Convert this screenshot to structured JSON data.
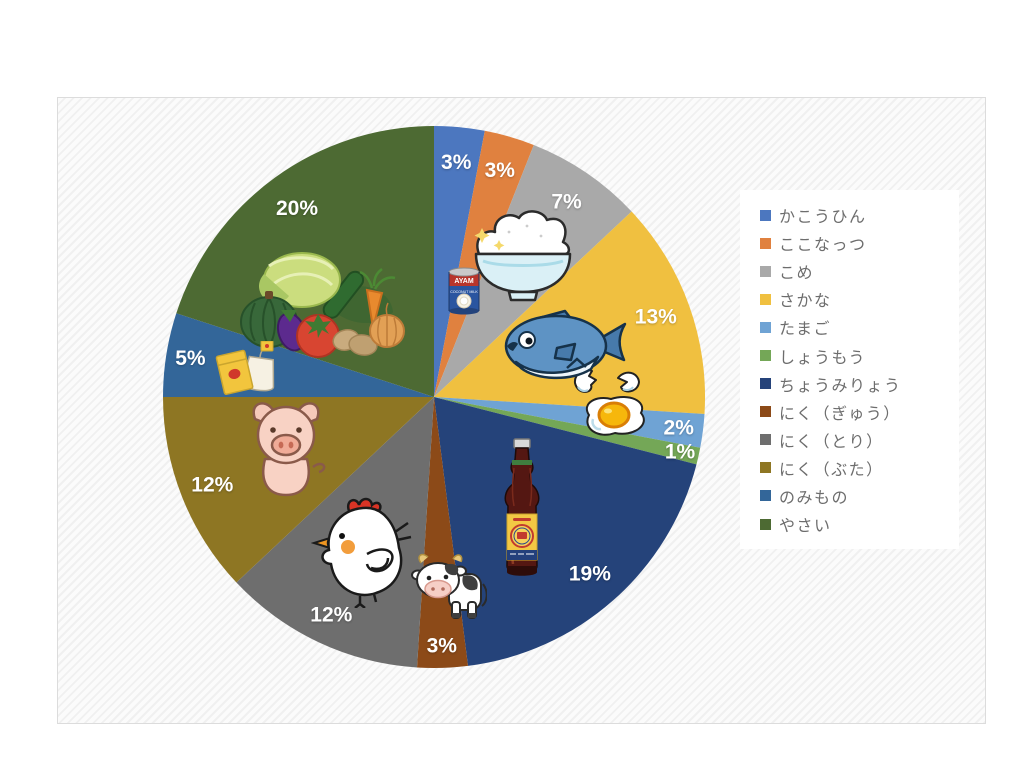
{
  "chart_data": {
    "type": "pie",
    "title": "",
    "unit": "percent",
    "direction": "clockwise",
    "start_angle_deg": 0,
    "legend_position": "right",
    "total": 100,
    "slices": [
      {
        "id": "kakouhin",
        "label": "かこうひん",
        "value": 3,
        "display": "3%",
        "color": "#4C77BF",
        "label_r": 0.87
      },
      {
        "id": "coconut",
        "label": "ここなっつ",
        "value": 3,
        "display": "3%",
        "color": "#E0813F",
        "label_r": 0.87
      },
      {
        "id": "kome",
        "label": "こめ",
        "value": 7,
        "display": "7%",
        "color": "#A9A9A9",
        "label_r": 0.87
      },
      {
        "id": "sakana",
        "label": "さかな",
        "value": 13,
        "display": "13%",
        "color": "#F0C040",
        "label_r": 0.87
      },
      {
        "id": "tamago",
        "label": "たまご",
        "value": 2,
        "display": "2%",
        "color": "#6FA3D4",
        "label_r": 0.91
      },
      {
        "id": "shoumou",
        "label": "しょうもう",
        "value": 1,
        "display": "1%",
        "color": "#74A757",
        "label_r": 0.93
      },
      {
        "id": "choumiryou",
        "label": "ちょうみりょう",
        "value": 19,
        "display": "19%",
        "color": "#25437A",
        "label_r": 0.87
      },
      {
        "id": "niku-gyuu",
        "label": "にく（ぎゅう）",
        "value": 3,
        "display": "3%",
        "color": "#8C4A18",
        "label_r": 0.92
      },
      {
        "id": "niku-tori",
        "label": "にく（とり）",
        "value": 12,
        "display": "12%",
        "color": "#6E6E6E",
        "label_r": 0.89
      },
      {
        "id": "niku-buta",
        "label": "にく（ぶた）",
        "value": 12,
        "display": "12%",
        "color": "#8E7623",
        "label_r": 0.88
      },
      {
        "id": "nomimono",
        "label": "のみもの",
        "value": 5,
        "display": "5%",
        "color": "#336699",
        "label_r": 0.91
      },
      {
        "id": "yasai",
        "label": "やさい",
        "value": 20,
        "display": "20%",
        "color": "#4D6A33",
        "label_r": 0.86
      }
    ]
  },
  "illustrations": {
    "coconut_can": {
      "icon": "coconut-milk-can-icon",
      "brand": "AYAM",
      "product": "COCONUT MILK"
    },
    "rice_bowl": {
      "icon": "rice-bowl-icon"
    },
    "fish": {
      "icon": "fish-icon"
    },
    "eggs": {
      "icon": "cracked-egg-fried-egg-icon"
    },
    "sauce_bottle": {
      "icon": "fish-sauce-bottle-icon"
    },
    "cow": {
      "icon": "cow-icon"
    },
    "chicken": {
      "icon": "chicken-icon"
    },
    "pig": {
      "icon": "pig-icon"
    },
    "drinks": {
      "icon": "drink-packets-icon"
    },
    "vegetables": {
      "icon": "vegetables-icon"
    }
  }
}
